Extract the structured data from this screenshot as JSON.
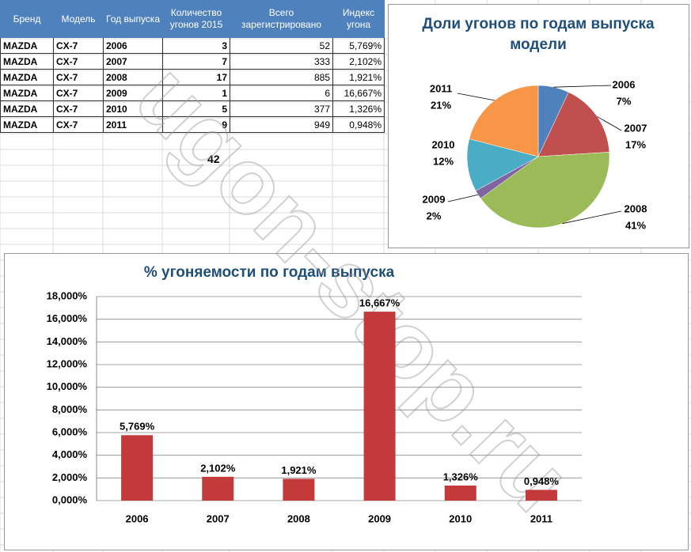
{
  "table": {
    "headers": [
      "Бренд",
      "Модель",
      "Год выпуска",
      "Количество угонов 2015",
      "Всего зарегистрировано",
      "Индекс угона"
    ],
    "rows": [
      [
        "MAZDA",
        "CX-7",
        "2006",
        "3",
        "52",
        "5,769%"
      ],
      [
        "MAZDA",
        "CX-7",
        "2007",
        "7",
        "333",
        "2,102%"
      ],
      [
        "MAZDA",
        "CX-7",
        "2008",
        "17",
        "885",
        "1,921%"
      ],
      [
        "MAZDA",
        "CX-7",
        "2009",
        "1",
        "6",
        "16,667%"
      ],
      [
        "MAZDA",
        "CX-7",
        "2010",
        "5",
        "377",
        "1,326%"
      ],
      [
        "MAZDA",
        "CX-7",
        "2011",
        "9",
        "949",
        "0,948%"
      ]
    ],
    "total": "42"
  },
  "watermark": "ugon-stop.ru",
  "chart_data": [
    {
      "type": "pie",
      "title": "Доли угонов  по годам выпуска модели",
      "categories": [
        "2006",
        "2007",
        "2008",
        "2009",
        "2010",
        "2011"
      ],
      "values": [
        7,
        17,
        41,
        2,
        12,
        21
      ],
      "value_labels": [
        "7%",
        "17%",
        "41%",
        "2%",
        "12%",
        "21%"
      ],
      "colors": [
        "#4f81bd",
        "#c0504d",
        "#9bbb59",
        "#8064a2",
        "#4bacc6",
        "#f79646"
      ]
    },
    {
      "type": "bar",
      "title": "% угоняемости  по годам выпуска",
      "categories": [
        "2006",
        "2007",
        "2008",
        "2009",
        "2010",
        "2011"
      ],
      "values": [
        5.769,
        2.102,
        1.921,
        16.667,
        1.326,
        0.948
      ],
      "value_labels": [
        "5,769%",
        "2,102%",
        "1,921%",
        "16,667%",
        "1,326%",
        "0,948%"
      ],
      "color": "#c43a3a",
      "ylim": [
        0,
        18
      ],
      "yticks": [
        {
          "value": 0,
          "label": "0,000%"
        },
        {
          "value": 2,
          "label": "2,000%"
        },
        {
          "value": 4,
          "label": "4,000%"
        },
        {
          "value": 6,
          "label": "6,000%"
        },
        {
          "value": 8,
          "label": "8,000%"
        },
        {
          "value": 10,
          "label": "10,000%"
        },
        {
          "value": 12,
          "label": "12,000%"
        },
        {
          "value": 14,
          "label": "14,000%"
        },
        {
          "value": 16,
          "label": "16,000%"
        },
        {
          "value": 18,
          "label": "18,000%"
        }
      ],
      "grid": true
    }
  ]
}
